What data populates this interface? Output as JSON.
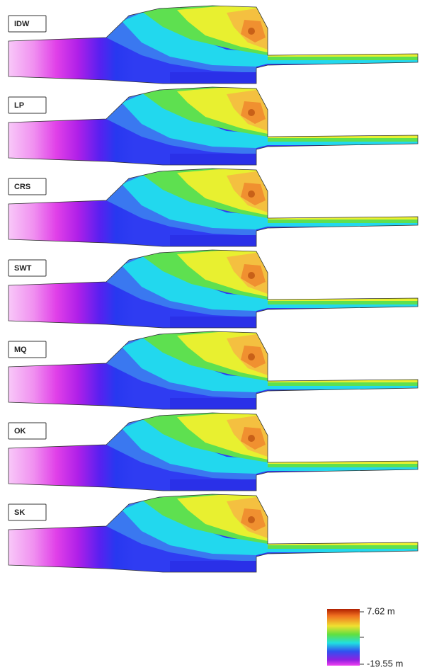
{
  "panels": [
    {
      "label": "IDW"
    },
    {
      "label": "LP"
    },
    {
      "label": "CRS"
    },
    {
      "label": "SWT"
    },
    {
      "label": "MQ"
    },
    {
      "label": "OK"
    },
    {
      "label": "SK"
    }
  ],
  "legend": {
    "max_label": "7.62 m",
    "min_label": "-19.55 m"
  }
}
